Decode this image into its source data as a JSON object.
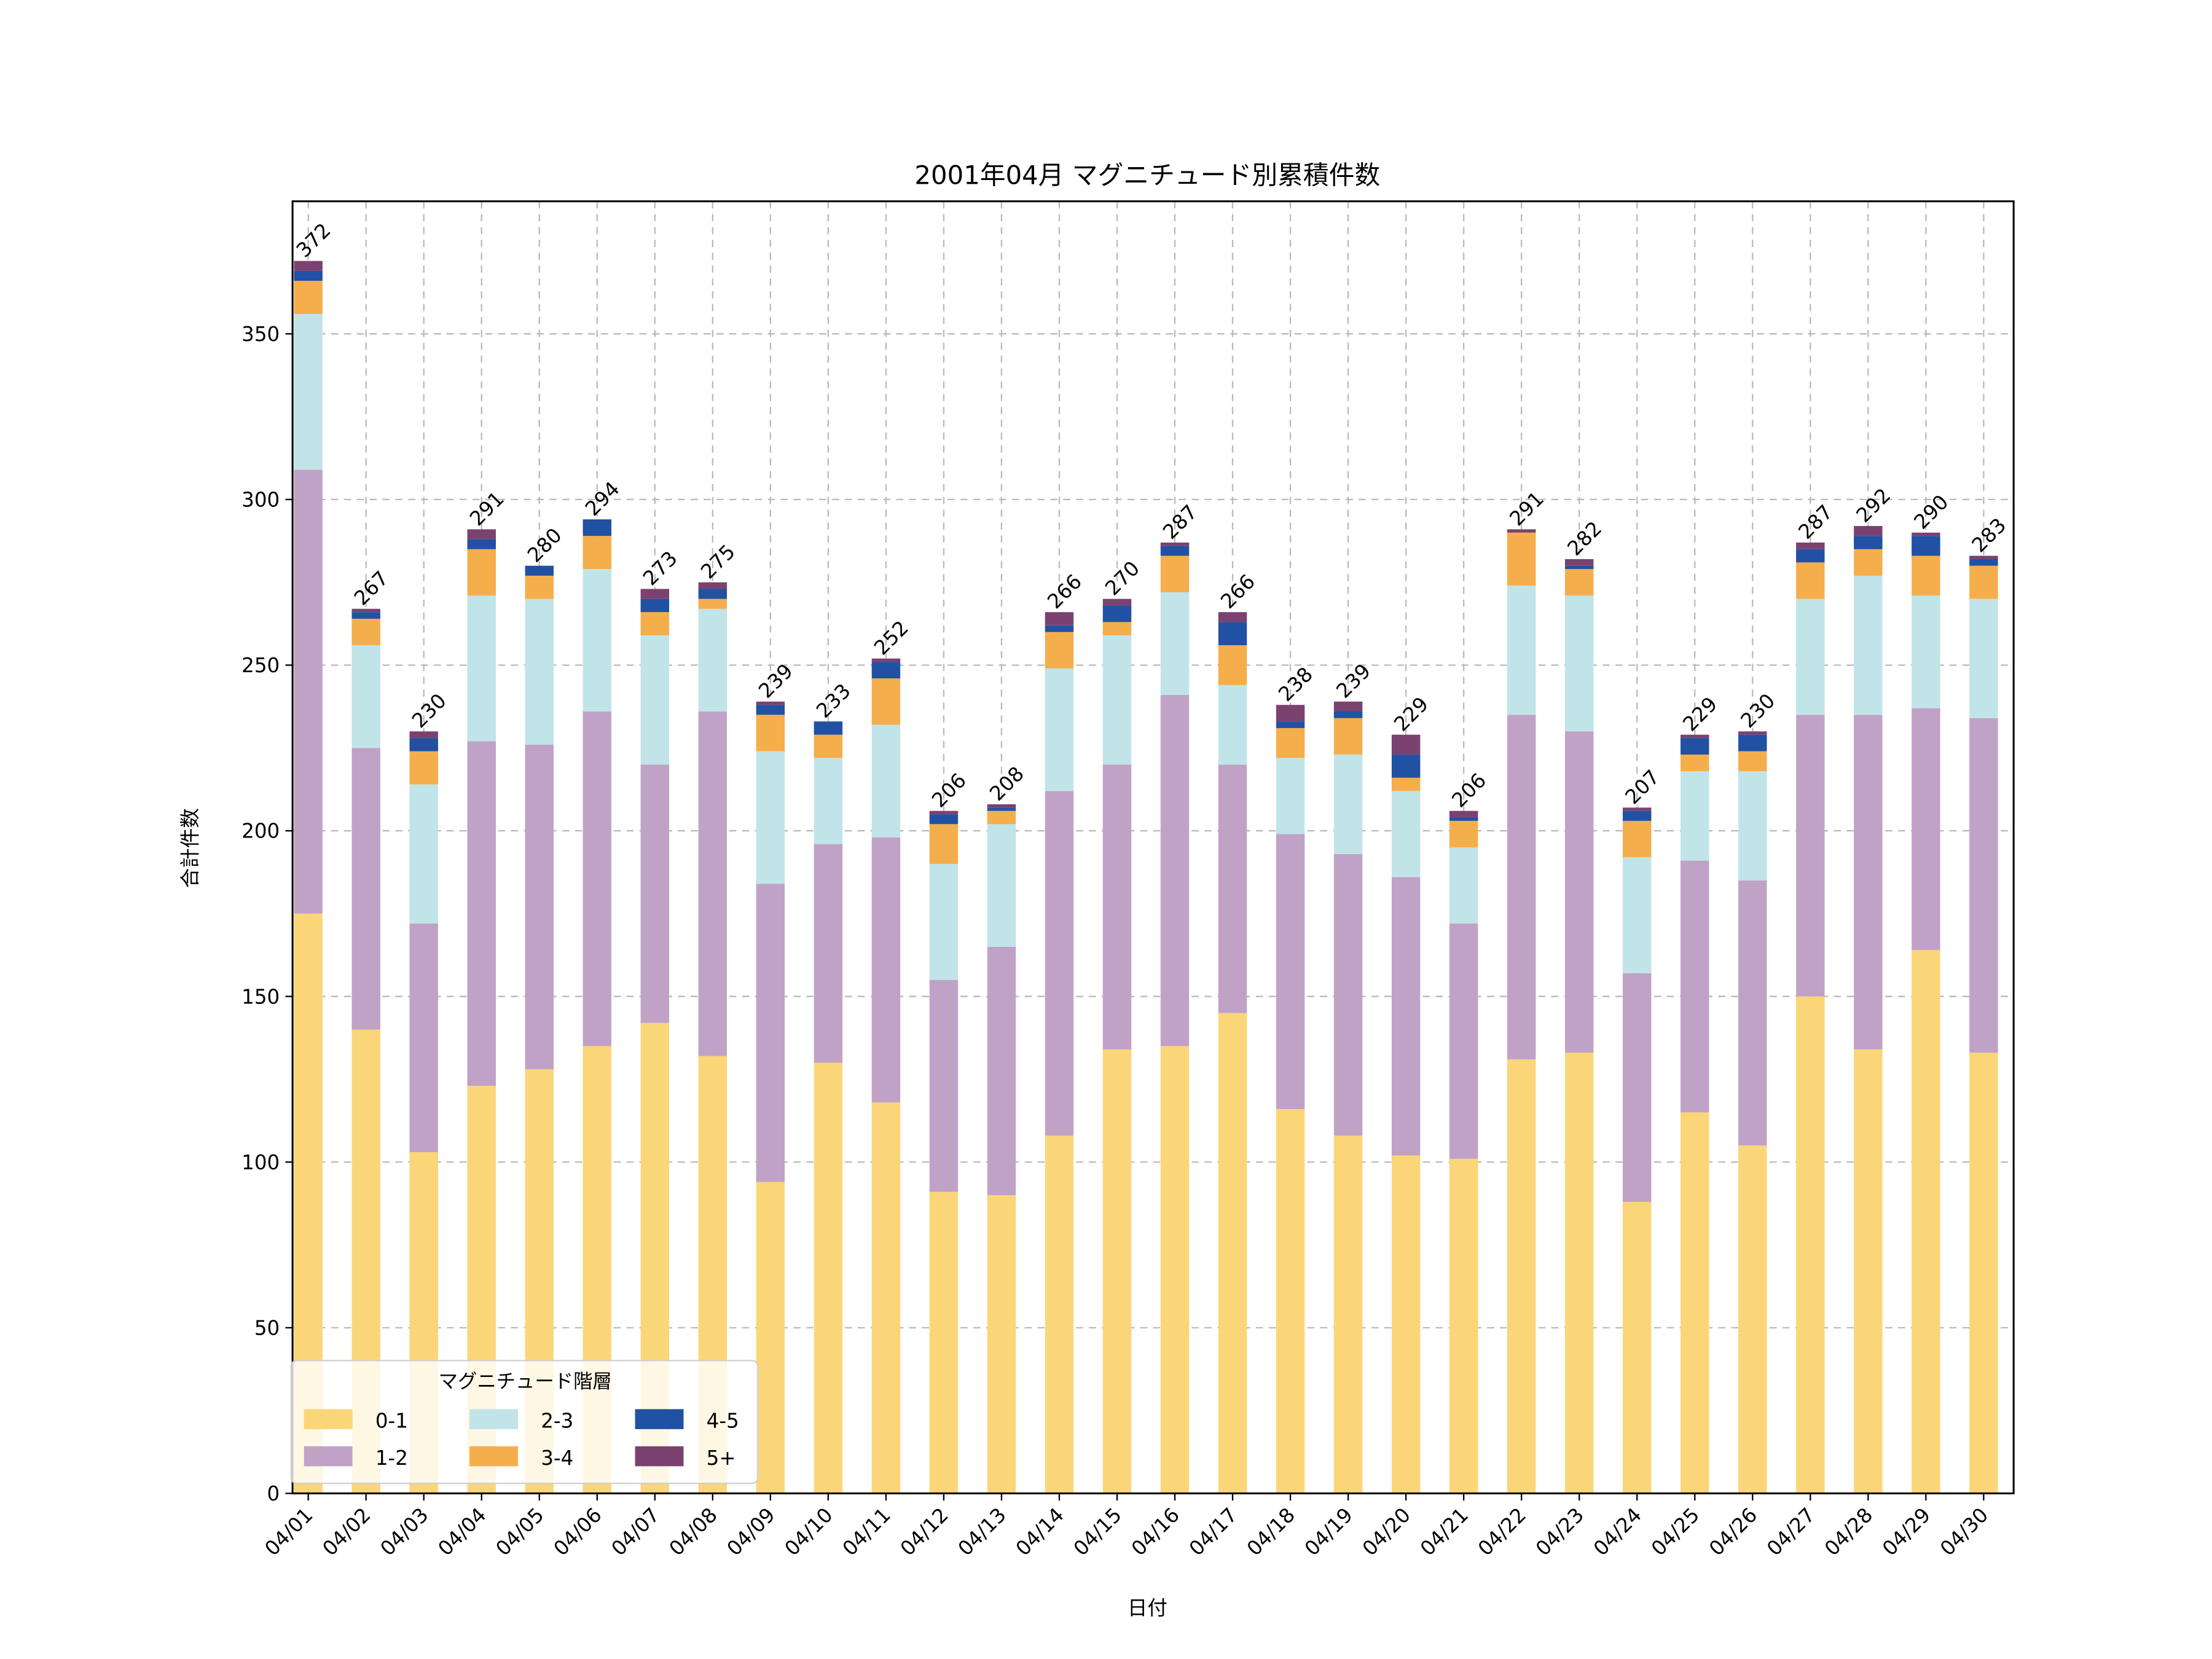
{
  "chart_data": {
    "type": "bar",
    "stacked": true,
    "title": "2001年04月 マグニチュード別累積件数",
    "xlabel": "日付",
    "ylabel": "合計件数",
    "ylim": [
      0,
      390
    ],
    "yticks": [
      0,
      50,
      100,
      150,
      200,
      250,
      300,
      350
    ],
    "grid": true,
    "legend": {
      "title": "マグニチュード階層",
      "position": "lower-left",
      "columns": 3
    },
    "categories": [
      "04/01",
      "04/02",
      "04/03",
      "04/04",
      "04/05",
      "04/06",
      "04/07",
      "04/08",
      "04/09",
      "04/10",
      "04/11",
      "04/12",
      "04/13",
      "04/14",
      "04/15",
      "04/16",
      "04/17",
      "04/18",
      "04/19",
      "04/20",
      "04/21",
      "04/22",
      "04/23",
      "04/24",
      "04/25",
      "04/26",
      "04/27",
      "04/28",
      "04/29",
      "04/30"
    ],
    "series": [
      {
        "name": "0-1",
        "color": "#fbd679",
        "values": [
          175,
          140,
          103,
          123,
          128,
          135,
          142,
          132,
          94,
          130,
          118,
          91,
          90,
          108,
          134,
          135,
          145,
          116,
          108,
          102,
          101,
          131,
          133,
          88,
          115,
          105,
          150,
          134,
          164,
          133
        ]
      },
      {
        "name": "1-2",
        "color": "#c0a2c7",
        "values": [
          134,
          85,
          69,
          104,
          98,
          101,
          78,
          104,
          90,
          66,
          80,
          64,
          75,
          104,
          86,
          106,
          75,
          83,
          85,
          84,
          71,
          104,
          97,
          69,
          76,
          80,
          85,
          101,
          73,
          101
        ]
      },
      {
        "name": "2-3",
        "color": "#c1e4e8",
        "values": [
          47,
          31,
          42,
          44,
          44,
          43,
          39,
          31,
          40,
          26,
          34,
          35,
          37,
          37,
          39,
          31,
          24,
          23,
          30,
          26,
          23,
          39,
          41,
          35,
          27,
          33,
          35,
          42,
          34,
          36
        ]
      },
      {
        "name": "3-4",
        "color": "#f5ae4c",
        "values": [
          10,
          8,
          10,
          14,
          7,
          10,
          7,
          3,
          11,
          7,
          14,
          12,
          4,
          11,
          4,
          11,
          12,
          9,
          11,
          4,
          8,
          16,
          8,
          11,
          5,
          6,
          11,
          8,
          12,
          10
        ]
      },
      {
        "name": "4-5",
        "color": "#2151a3",
        "values": [
          3,
          2,
          4,
          3,
          3,
          5,
          4,
          3,
          3,
          4,
          5,
          3,
          1,
          2,
          5,
          3,
          7,
          2,
          2,
          7,
          1,
          0,
          1,
          3,
          5,
          5,
          4,
          4,
          6,
          2
        ]
      },
      {
        "name": "5+",
        "color": "#7b4270",
        "values": [
          3,
          1,
          2,
          3,
          0,
          0,
          3,
          2,
          1,
          0,
          1,
          1,
          1,
          4,
          2,
          1,
          3,
          5,
          3,
          6,
          2,
          1,
          2,
          1,
          1,
          1,
          2,
          3,
          1,
          1
        ]
      }
    ],
    "totals": [
      372,
      267,
      230,
      291,
      280,
      294,
      273,
      275,
      239,
      233,
      252,
      206,
      208,
      266,
      270,
      287,
      266,
      238,
      239,
      229,
      206,
      291,
      282,
      207,
      229,
      230,
      287,
      292,
      290,
      283
    ]
  }
}
